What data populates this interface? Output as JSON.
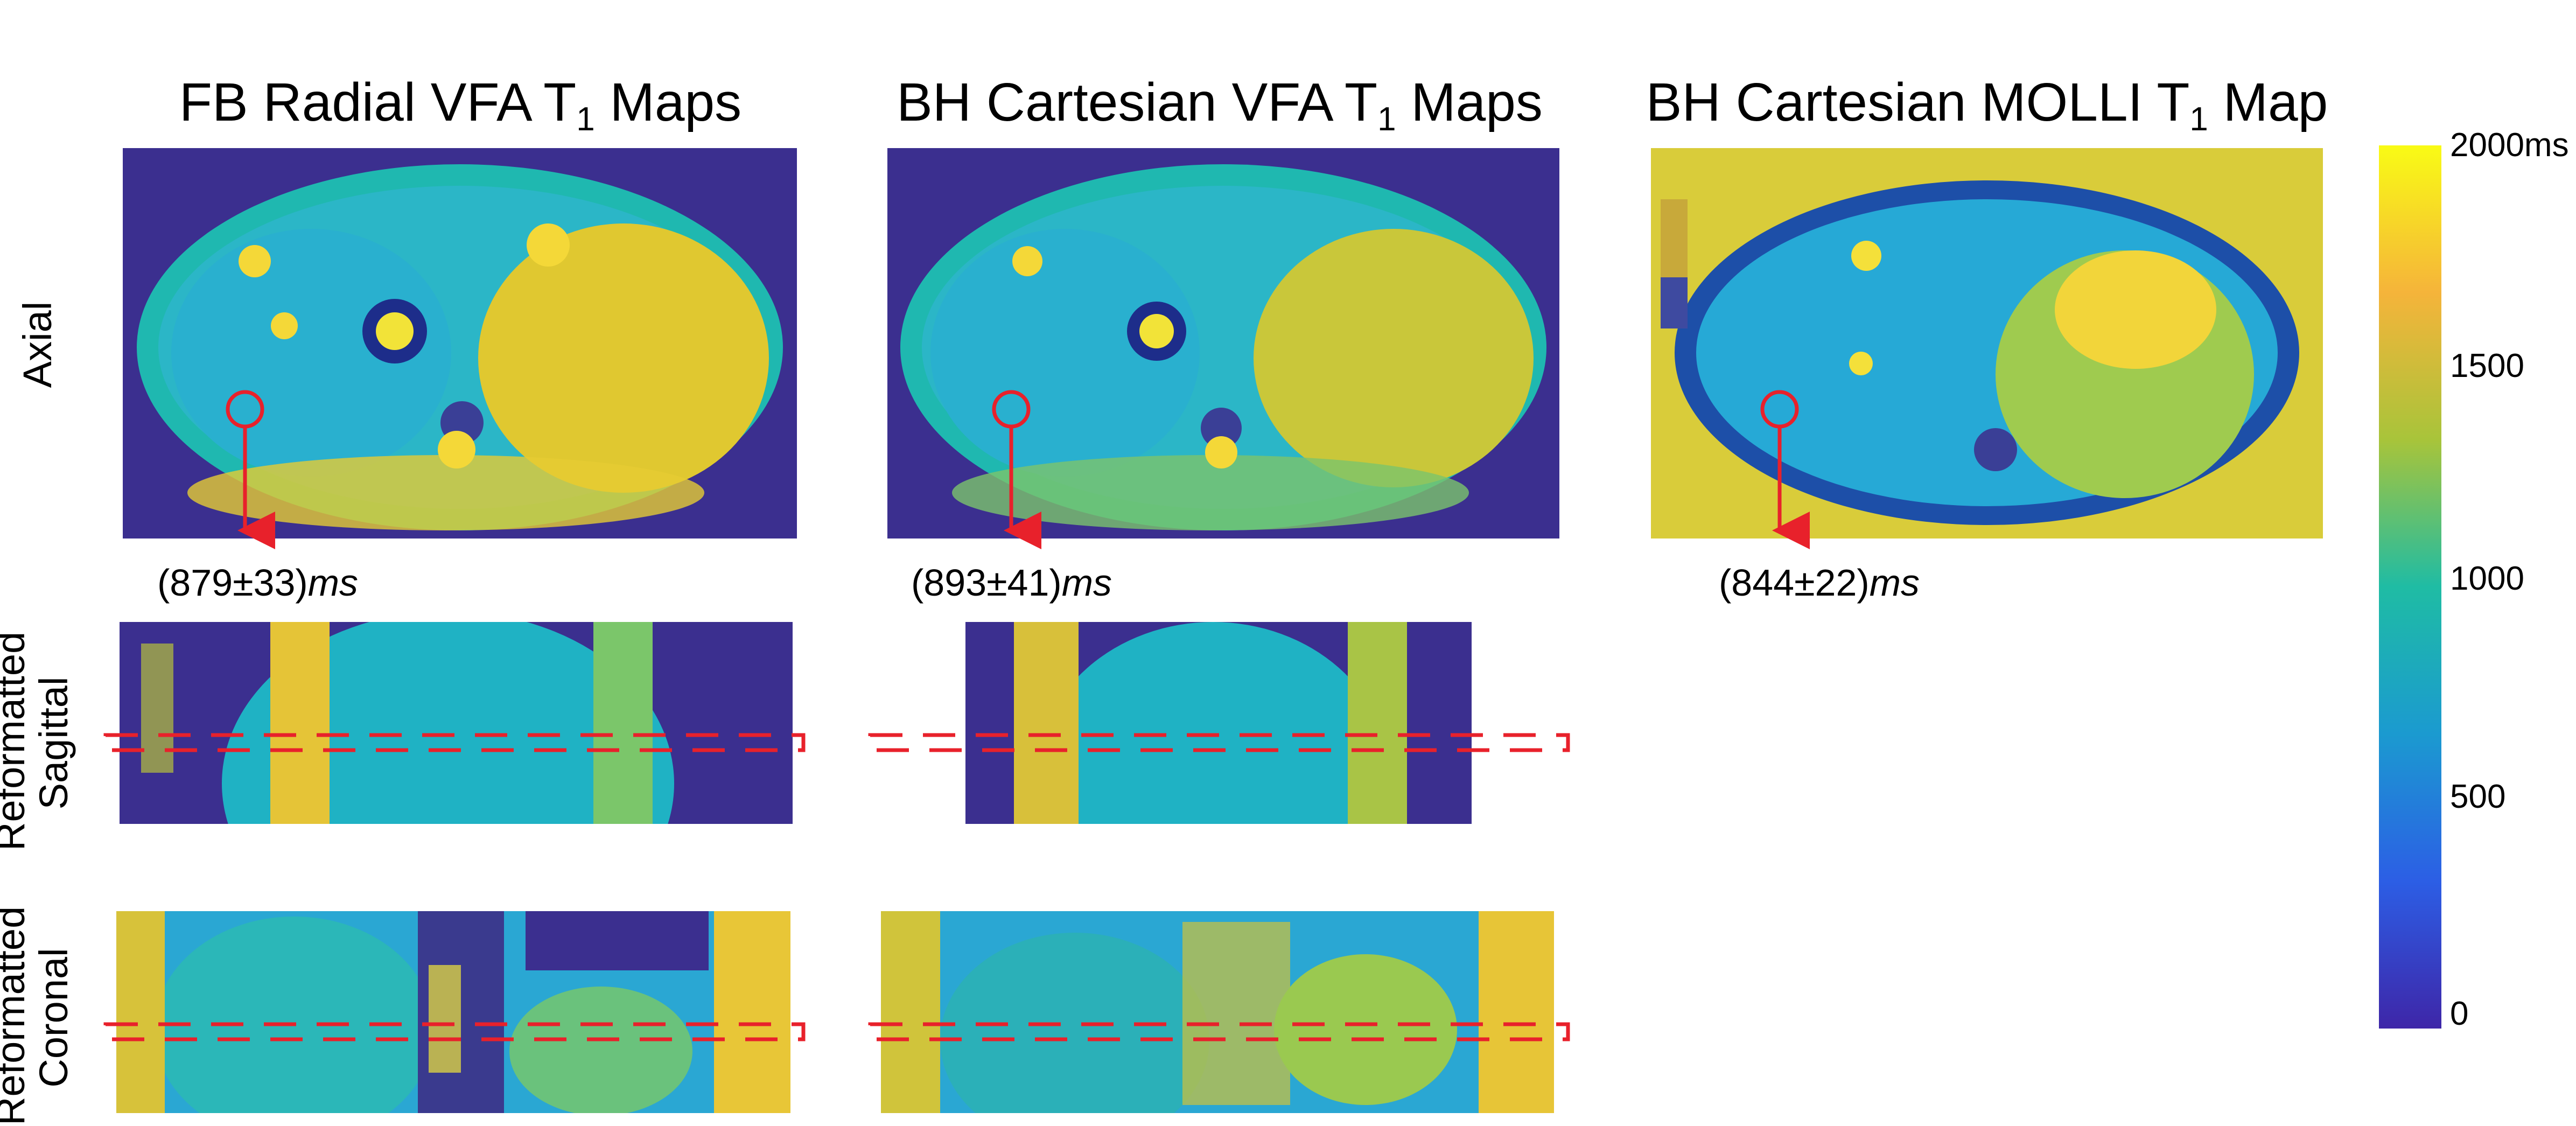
{
  "columns": [
    {
      "title_main": "FB Radial VFA T",
      "title_sub": "1",
      "title_tail": " Maps"
    },
    {
      "title_main": "BH Cartesian VFA T",
      "title_sub": "1",
      "title_tail": " Maps"
    },
    {
      "title_main": "BH Cartesian MOLLI T",
      "title_sub": "1",
      "title_tail": " Map"
    }
  ],
  "rows": {
    "axial": "Axial",
    "sagittal_line1": "Reformatted",
    "sagittal_line2": "Sagittal",
    "coronal_line1": "Reformatted",
    "coronal_line2": "Coronal"
  },
  "roi_values": [
    {
      "value": "(879±33)",
      "unit": "ms"
    },
    {
      "value": "(893±41)",
      "unit": "ms"
    },
    {
      "value": "(844±22)",
      "unit": "ms"
    }
  ],
  "colorbar": {
    "ticks": [
      "2000ms",
      "1500",
      "1000",
      "500",
      "0"
    ],
    "tick_values": [
      2000,
      1500,
      1000,
      500,
      0
    ],
    "range": [
      0,
      2000
    ],
    "colormap": "parula",
    "colors": [
      "#3e26a8",
      "#2c5ee5",
      "#1b9ad0",
      "#1fbca4",
      "#a8c43a",
      "#f5b43a",
      "#f9fb15"
    ]
  },
  "colors": {
    "background_value": "#3b2f8f",
    "roi_marker": "#e8212b"
  }
}
